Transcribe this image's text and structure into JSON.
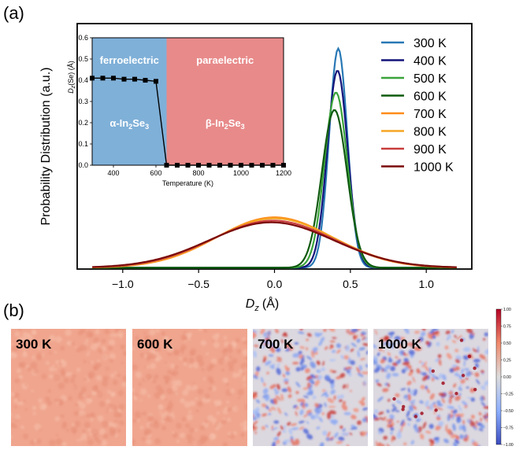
{
  "panel_a_label": "(a)",
  "panel_b_label": "(b)",
  "chart_data": [
    {
      "type": "line",
      "title": "",
      "xlabel": "D_z (Å)",
      "xlabel_main": "D",
      "xlabel_sub": "z",
      "xlabel_unit": "(Å)",
      "ylabel": "Probability Distribution (a.u.)",
      "xlim": [
        -1.3,
        1.3
      ],
      "ylim": [
        0,
        1.12
      ],
      "xticks": [
        -1.0,
        -0.5,
        0.0,
        0.5,
        1.0
      ],
      "xtick_labels": [
        "−1.0",
        "−0.5",
        "0.0",
        "0.5",
        "1.0"
      ],
      "x_range": [
        -1.2,
        1.2
      ],
      "legend_position": "top-right",
      "series": [
        {
          "name": "300 K",
          "color": "#2878b5",
          "center": 0.42,
          "width": 0.06,
          "peak": 1.0
        },
        {
          "name": "400 K",
          "color": "#14147a",
          "center": 0.415,
          "width": 0.067,
          "peak": 0.9
        },
        {
          "name": "500 K",
          "color": "#3aa33a",
          "center": 0.405,
          "width": 0.075,
          "peak": 0.8
        },
        {
          "name": "600 K",
          "color": "#0f5a0f",
          "center": 0.395,
          "width": 0.083,
          "peak": 0.72
        },
        {
          "name": "700 K",
          "color": "#ff8c1a",
          "center": 0.0,
          "width": 0.38,
          "peak": 0.23
        },
        {
          "name": "800 K",
          "color": "#f5a623",
          "center": 0.0,
          "width": 0.39,
          "peak": 0.225
        },
        {
          "name": "900 K",
          "color": "#c83c3c",
          "center": -0.01,
          "width": 0.4,
          "peak": 0.215
        },
        {
          "name": "1000 K",
          "color": "#7a0a0a",
          "center": -0.02,
          "width": 0.41,
          "peak": 0.207
        }
      ]
    },
    {
      "type": "line",
      "title": "",
      "xlabel": "Temperature (K)",
      "ylabel": "D_z(Se) (Å)",
      "ylabel_text": "D",
      "ylabel_sub": "z",
      "ylabel_rest": "(Se) (Å)",
      "xlim": [
        300,
        1200
      ],
      "ylim": [
        0.0,
        0.6
      ],
      "xticks": [
        400,
        600,
        800,
        1000,
        1200
      ],
      "yticks": [
        0.0,
        0.1,
        0.2,
        0.3,
        0.4,
        0.5,
        0.6
      ],
      "ytick_labels": [
        "0.0",
        "0.1",
        "0.2",
        "0.3",
        "0.4",
        "0.5",
        "0.6"
      ],
      "transition_temperature": 650,
      "regions": [
        {
          "phase": "ferroelectric",
          "formula_prefix": "α-In",
          "sub1": "2",
          "mid": "Se",
          "sub2": "3",
          "color": "#7fb0d8"
        },
        {
          "phase": "paraelectric",
          "formula_prefix": "β-In",
          "sub1": "2",
          "mid": "Se",
          "sub2": "3",
          "color": "#e88a8a"
        }
      ],
      "x": [
        300,
        350,
        400,
        450,
        500,
        550,
        600,
        650,
        700,
        750,
        800,
        850,
        900,
        950,
        1000,
        1050,
        1100,
        1150,
        1200
      ],
      "y": [
        0.41,
        0.41,
        0.41,
        0.405,
        0.405,
        0.4,
        0.395,
        0.0,
        0.0,
        0.0,
        0.0,
        0.0,
        0.0,
        0.0,
        0.0,
        0.0,
        0.0,
        0.0,
        0.0
      ],
      "marker": "square",
      "line_color": "#000000"
    },
    {
      "type": "heatmap",
      "panels": [
        {
          "label": "300 K",
          "mode": "ordered"
        },
        {
          "label": "600 K",
          "mode": "ordered"
        },
        {
          "label": "700 K",
          "mode": "disordered"
        },
        {
          "label": "1000 K",
          "mode": "disordered"
        }
      ],
      "colorbar": {
        "ticks": [
          1.0,
          0.75,
          0.5,
          0.25,
          0.0,
          -0.25,
          -0.5,
          -0.75,
          -1.0
        ],
        "tick_labels": [
          "1.00",
          "0.75",
          "0.50",
          "0.25",
          "0.00",
          "−0.25",
          "−0.50",
          "−0.75",
          "−1.00"
        ],
        "range": [
          -1.0,
          1.0
        ],
        "cmap": "coolwarm"
      }
    }
  ]
}
